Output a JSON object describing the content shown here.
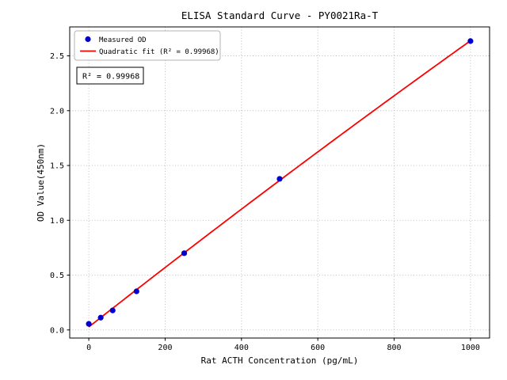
{
  "chart_data": {
    "type": "scatter",
    "title": "ELISA Standard Curve - PY0021Ra-T",
    "xlabel": "Rat ACTH Concentration (pg/mL)",
    "ylabel": "OD Value(450nm)",
    "xlim": [
      -50,
      1050
    ],
    "ylim": [
      -0.074,
      2.764
    ],
    "xticks": [
      0,
      200,
      400,
      600,
      800,
      1000
    ],
    "yticks": [
      0,
      0.5,
      1,
      1.5,
      2,
      2.5
    ],
    "xtick_labels": [
      "0",
      "200",
      "400",
      "600",
      "800",
      "1000"
    ],
    "ytick_labels": [
      "0.0",
      "0.5",
      "1.0",
      "1.5",
      "2.0",
      "2.5"
    ],
    "grid": true,
    "annotation": "R² = 0.99968",
    "legend": {
      "position": "upper-left",
      "entries": [
        {
          "label": "Measured OD",
          "type": "point",
          "color": "#0000cd"
        },
        {
          "label": "Quadratic fit (R² = 0.99968)",
          "type": "line",
          "color": "#ff0000"
        }
      ]
    },
    "series": [
      {
        "name": "Measured OD",
        "type": "scatter",
        "color": "#0000cd",
        "x": [
          0,
          31.25,
          62.5,
          125,
          250,
          500,
          1000
        ],
        "y": [
          0.055,
          0.112,
          0.178,
          0.352,
          0.7,
          1.378,
          2.635
        ]
      },
      {
        "name": "Quadratic fit",
        "type": "quadratic-fit-line",
        "color": "#ff0000",
        "r_squared": "0.99968"
      }
    ]
  }
}
